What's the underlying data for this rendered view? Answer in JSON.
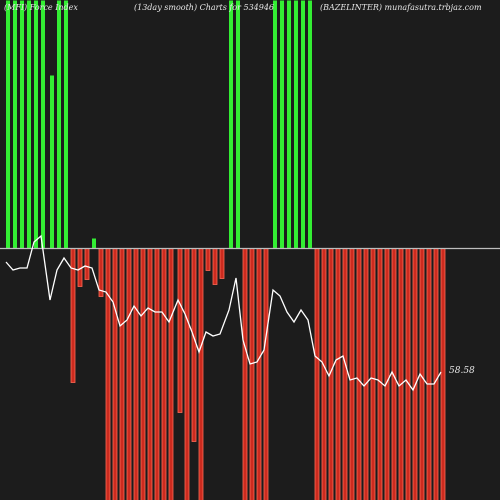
{
  "header": {
    "left": "(MFI) Force Index",
    "center": "(13day smooth) Charts for 534946",
    "right": "(BAZELINTER) munafasutra.trbjaz.com"
  },
  "chart_data": {
    "type": "bar",
    "title": "",
    "value_label": "58.58",
    "colors": {
      "positive_fill": "#33ee33",
      "negative_fill": "#cc2b1f",
      "negative_edge": "#ff6a55",
      "baseline": "#bdbdbd",
      "line": "#ffffff",
      "background": "#1c1c1c"
    },
    "bars": [
      {
        "x": 6,
        "v": 248
      },
      {
        "x": 13,
        "v": 248
      },
      {
        "x": 20,
        "v": 248
      },
      {
        "x": 27,
        "v": 248
      },
      {
        "x": 34,
        "v": 248
      },
      {
        "x": 41,
        "v": 248
      },
      {
        "x": 50,
        "v": 173
      },
      {
        "x": 57,
        "v": 248
      },
      {
        "x": 64,
        "v": 248
      },
      {
        "x": 71,
        "v": -134
      },
      {
        "x": 78,
        "v": -38
      },
      {
        "x": 85,
        "v": -31
      },
      {
        "x": 92,
        "v": 10
      },
      {
        "x": 99,
        "v": -48
      },
      {
        "x": 106,
        "v": -252
      },
      {
        "x": 113,
        "v": -252
      },
      {
        "x": 120,
        "v": -252
      },
      {
        "x": 127,
        "v": -252
      },
      {
        "x": 134,
        "v": -252
      },
      {
        "x": 141,
        "v": -252
      },
      {
        "x": 148,
        "v": -252
      },
      {
        "x": 155,
        "v": -252
      },
      {
        "x": 162,
        "v": -252
      },
      {
        "x": 169,
        "v": -252
      },
      {
        "x": 178,
        "v": -164
      },
      {
        "x": 185,
        "v": -252
      },
      {
        "x": 192,
        "v": -193
      },
      {
        "x": 199,
        "v": -252
      },
      {
        "x": 206,
        "v": -22
      },
      {
        "x": 213,
        "v": -36
      },
      {
        "x": 220,
        "v": -30
      },
      {
        "x": 229,
        "v": 248
      },
      {
        "x": 236,
        "v": 248
      },
      {
        "x": 243,
        "v": -252
      },
      {
        "x": 250,
        "v": -252
      },
      {
        "x": 257,
        "v": -252
      },
      {
        "x": 264,
        "v": -252
      },
      {
        "x": 273,
        "v": 248
      },
      {
        "x": 280,
        "v": 248
      },
      {
        "x": 287,
        "v": 248
      },
      {
        "x": 294,
        "v": 248
      },
      {
        "x": 301,
        "v": 248
      },
      {
        "x": 308,
        "v": 248
      },
      {
        "x": 315,
        "v": -252
      },
      {
        "x": 322,
        "v": -252
      },
      {
        "x": 329,
        "v": -252
      },
      {
        "x": 336,
        "v": -252
      },
      {
        "x": 343,
        "v": -252
      },
      {
        "x": 350,
        "v": -252
      },
      {
        "x": 357,
        "v": -252
      },
      {
        "x": 364,
        "v": -252
      },
      {
        "x": 371,
        "v": -252
      },
      {
        "x": 378,
        "v": -252
      },
      {
        "x": 385,
        "v": -252
      },
      {
        "x": 392,
        "v": -252
      },
      {
        "x": 399,
        "v": -252
      },
      {
        "x": 406,
        "v": -252
      },
      {
        "x": 413,
        "v": -252
      },
      {
        "x": 420,
        "v": -252
      },
      {
        "x": 427,
        "v": -252
      },
      {
        "x": 434,
        "v": -252
      },
      {
        "x": 441,
        "v": -252
      }
    ],
    "line": [
      [
        6,
        262
      ],
      [
        13,
        270
      ],
      [
        20,
        268
      ],
      [
        27,
        268
      ],
      [
        34,
        242
      ],
      [
        41,
        236
      ],
      [
        50,
        300
      ],
      [
        57,
        270
      ],
      [
        64,
        258
      ],
      [
        71,
        268
      ],
      [
        78,
        270
      ],
      [
        85,
        266
      ],
      [
        92,
        268
      ],
      [
        99,
        290
      ],
      [
        106,
        292
      ],
      [
        113,
        302
      ],
      [
        120,
        326
      ],
      [
        127,
        320
      ],
      [
        134,
        306
      ],
      [
        141,
        316
      ],
      [
        148,
        308
      ],
      [
        155,
        312
      ],
      [
        162,
        312
      ],
      [
        169,
        322
      ],
      [
        178,
        300
      ],
      [
        185,
        314
      ],
      [
        192,
        332
      ],
      [
        199,
        352
      ],
      [
        206,
        332
      ],
      [
        213,
        336
      ],
      [
        220,
        334
      ],
      [
        229,
        310
      ],
      [
        236,
        278
      ],
      [
        243,
        340
      ],
      [
        250,
        364
      ],
      [
        257,
        362
      ],
      [
        264,
        350
      ],
      [
        273,
        290
      ],
      [
        280,
        296
      ],
      [
        287,
        312
      ],
      [
        294,
        322
      ],
      [
        301,
        310
      ],
      [
        308,
        320
      ],
      [
        315,
        356
      ],
      [
        322,
        362
      ],
      [
        329,
        376
      ],
      [
        336,
        360
      ],
      [
        343,
        356
      ],
      [
        350,
        380
      ],
      [
        357,
        378
      ],
      [
        364,
        386
      ],
      [
        371,
        378
      ],
      [
        378,
        380
      ],
      [
        385,
        386
      ],
      [
        392,
        372
      ],
      [
        399,
        386
      ],
      [
        406,
        380
      ],
      [
        413,
        390
      ],
      [
        420,
        374
      ],
      [
        427,
        384
      ],
      [
        434,
        384
      ],
      [
        441,
        372
      ]
    ]
  }
}
